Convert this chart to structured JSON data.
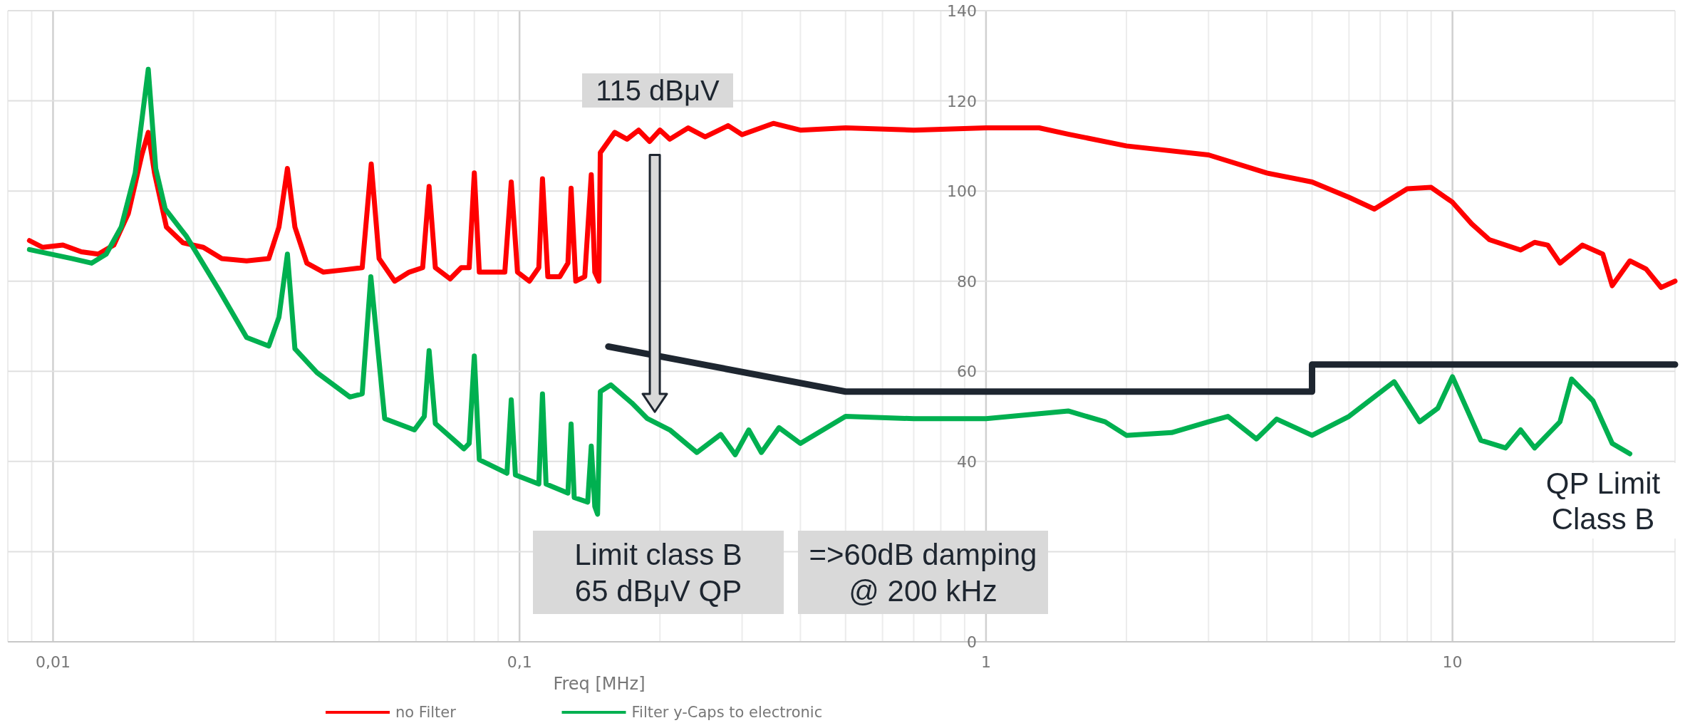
{
  "chart_data": {
    "type": "line",
    "xlabel": "Freq [MHz]",
    "log": "x",
    "grid": true,
    "legend": "bottom",
    "xlim": [
      0.008,
      30
    ],
    "ylim": [
      0,
      140
    ],
    "xticks": [
      {
        "value": 0.01,
        "label": "0,01"
      },
      {
        "value": 0.1,
        "label": "0,1"
      },
      1,
      10
    ],
    "yticks": [
      0,
      {
        "value": 20,
        "label": null
      },
      40,
      60,
      80,
      100,
      120,
      140
    ],
    "annotations": [
      "115 dBμV",
      "Limit class B\n65 dBμV QP",
      "=>60dB damping\n@ 200 kHz",
      "QP Limit\nClass B"
    ],
    "series": [
      {
        "name": "no Filter",
        "color": "#ff0000",
        "x": [
          0.0089,
          0.0095,
          0.0105,
          0.0115,
          0.0125,
          0.0135,
          0.0145,
          0.0155,
          0.016,
          0.0165,
          0.0175,
          0.019,
          0.021,
          0.023,
          0.026,
          0.029,
          0.0305,
          0.0318,
          0.033,
          0.035,
          0.038,
          0.042,
          0.046,
          0.0481,
          0.05,
          0.054,
          0.058,
          0.062,
          0.064,
          0.066,
          0.071,
          0.075,
          0.078,
          0.08,
          0.082,
          0.088,
          0.093,
          0.096,
          0.099,
          0.105,
          0.11,
          0.112,
          0.115,
          0.122,
          0.127,
          0.129,
          0.132,
          0.138,
          0.1425,
          0.145,
          0.148,
          0.149,
          0.16,
          0.17,
          0.18,
          0.19,
          0.2,
          0.21,
          0.23,
          0.25,
          0.28,
          0.3,
          0.35,
          0.4,
          0.5,
          0.7,
          1,
          1.3,
          1.5,
          2,
          3,
          4,
          5,
          6,
          6.8,
          8,
          9,
          10,
          11,
          12,
          14,
          15,
          16,
          17,
          19,
          21,
          22,
          24,
          26,
          28,
          30
        ],
        "values": [
          89,
          87.5,
          88,
          86.5,
          86,
          88,
          95,
          108,
          113,
          104,
          92,
          88.5,
          87.5,
          85,
          84.5,
          85,
          92,
          105,
          92,
          84,
          82,
          82.5,
          83,
          106,
          85,
          80,
          82,
          83,
          101,
          83,
          80.5,
          83,
          83,
          104,
          82,
          82,
          82,
          102,
          82,
          80,
          83,
          102.7,
          81,
          81,
          84,
          100.6,
          80,
          81,
          103.6,
          82,
          80,
          108.5,
          113,
          111.5,
          113.5,
          111,
          113.5,
          111.5,
          114,
          112,
          114.5,
          112.5,
          115,
          113.5,
          114,
          113.5,
          114,
          114,
          112.6,
          110,
          108,
          104,
          102,
          98.6,
          96,
          100.5,
          100.8,
          97.5,
          92.7,
          89.2,
          86.9,
          88.6,
          88,
          84,
          88,
          86,
          79,
          84.5,
          82.7,
          78.6,
          80
        ]
      },
      {
        "name": "Filter y-Caps to electronic",
        "color": "#00b050",
        "x": [
          0.0089,
          0.011,
          0.0121,
          0.013,
          0.014,
          0.015,
          0.016,
          0.0166,
          0.0174,
          0.0193,
          0.0227,
          0.026,
          0.029,
          0.0305,
          0.0318,
          0.033,
          0.0368,
          0.0433,
          0.046,
          0.048,
          0.0514,
          0.0595,
          0.0625,
          0.064,
          0.066,
          0.076,
          0.078,
          0.08,
          0.082,
          0.094,
          0.096,
          0.098,
          0.11,
          0.112,
          0.114,
          0.127,
          0.129,
          0.131,
          0.14,
          0.1425,
          0.145,
          0.147,
          0.149,
          0.157,
          0.174,
          0.188,
          0.21,
          0.24,
          0.27,
          0.29,
          0.31,
          0.33,
          0.36,
          0.4,
          0.5,
          0.7,
          1,
          1.5,
          1.8,
          2,
          2.5,
          3,
          3.3,
          3.8,
          4.2,
          5,
          6,
          7.5,
          8.5,
          9.3,
          10,
          11.5,
          13,
          14,
          15,
          17,
          18,
          20,
          22,
          24
        ],
        "values": [
          87,
          85,
          84,
          86,
          92,
          104,
          127,
          105,
          96,
          90,
          78,
          67.5,
          65.6,
          72,
          86,
          65,
          59.7,
          54.3,
          55,
          81,
          49.5,
          47,
          50,
          64.6,
          48.4,
          42.8,
          44,
          63.4,
          40.4,
          37.4,
          53.7,
          37,
          35,
          55,
          35,
          33,
          48.3,
          32,
          31,
          43.4,
          30,
          28.3,
          55.5,
          57,
          53,
          49.5,
          47,
          42,
          46,
          41.5,
          47,
          42,
          47.5,
          44,
          50,
          49.5,
          49.5,
          51.2,
          48.8,
          45.8,
          46.4,
          48.8,
          50,
          45,
          49.4,
          45.8,
          50,
          57.7,
          48.8,
          51.8,
          58.8,
          44.7,
          43,
          47,
          43,
          48.8,
          58.3,
          53.5,
          44,
          41.7
        ]
      },
      {
        "color": "#1e2630",
        "x": [
          0.155,
          0.5,
          5,
          5,
          30
        ],
        "values": [
          65.5,
          55.5,
          55.5,
          61.5,
          61.5
        ]
      }
    ]
  }
}
